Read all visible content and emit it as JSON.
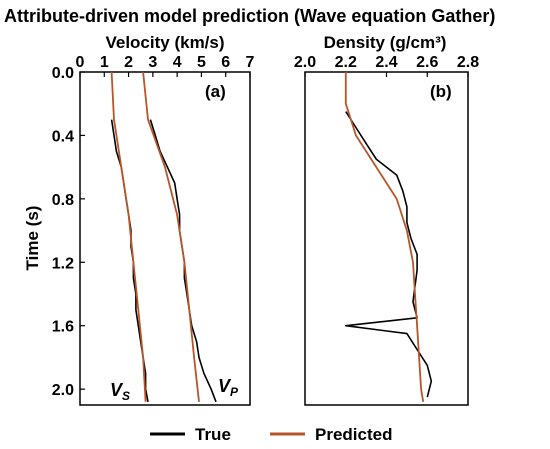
{
  "chart_data": {
    "title": "Attribute-driven model prediction (Wave equation Gather)",
    "ylabel": "Time (s)",
    "ylim": [
      0.0,
      2.1
    ],
    "yticks": [
      "0.0",
      "0.4",
      "0.8",
      "1.2",
      "1.6",
      "2.0"
    ],
    "ytick_values": [
      0.0,
      0.4,
      0.8,
      1.2,
      1.6,
      2.0
    ],
    "legend": {
      "placement": "bottom",
      "entries": [
        {
          "name": "True",
          "color": "#000000"
        },
        {
          "name": "Predicted",
          "color": "#b5552a"
        }
      ]
    },
    "panels": [
      {
        "type": "line",
        "label": "(a)",
        "xlabel": "Velocity (km/s)",
        "xlim": [
          0,
          7
        ],
        "xticks": [
          "0",
          "1",
          "2",
          "3",
          "4",
          "5",
          "6",
          "7"
        ],
        "xtick_values": [
          0,
          1,
          2,
          3,
          4,
          5,
          6,
          7
        ],
        "curve_tags": [
          {
            "main": "V",
            "sub": "S"
          },
          {
            "main": "V",
            "sub": "P"
          }
        ],
        "series": [
          {
            "name": "True",
            "curve": "Vs",
            "time": [
              0.3,
              0.4,
              0.5,
              0.6,
              0.7,
              0.8,
              0.9,
              1.0,
              1.1,
              1.2,
              1.3,
              1.4,
              1.5,
              1.6,
              1.7,
              1.8,
              1.9,
              2.0,
              2.08
            ],
            "x": [
              1.3,
              1.4,
              1.5,
              1.7,
              1.8,
              1.9,
              2.0,
              2.1,
              2.1,
              2.2,
              2.2,
              2.3,
              2.3,
              2.4,
              2.5,
              2.6,
              2.7,
              2.7,
              2.8
            ]
          },
          {
            "name": "Predicted",
            "curve": "Vs",
            "time": [
              0.0,
              0.3,
              0.6,
              0.9,
              1.2,
              1.5,
              1.8,
              2.08
            ],
            "x": [
              1.3,
              1.4,
              1.7,
              2.0,
              2.2,
              2.4,
              2.6,
              2.7
            ]
          },
          {
            "name": "True",
            "curve": "Vp",
            "time": [
              0.3,
              0.4,
              0.5,
              0.6,
              0.7,
              0.8,
              0.9,
              1.0,
              1.1,
              1.2,
              1.3,
              1.4,
              1.5,
              1.6,
              1.7,
              1.8,
              1.9,
              2.0,
              2.08
            ],
            "x": [
              2.9,
              3.1,
              3.3,
              3.6,
              3.9,
              4.0,
              4.1,
              4.1,
              4.2,
              4.3,
              4.3,
              4.4,
              4.5,
              4.6,
              4.8,
              4.9,
              5.1,
              5.4,
              5.6
            ]
          },
          {
            "name": "Predicted",
            "curve": "Vp",
            "time": [
              0.0,
              0.3,
              0.6,
              0.9,
              1.2,
              1.5,
              1.8,
              2.08
            ],
            "x": [
              2.6,
              2.8,
              3.5,
              4.0,
              4.3,
              4.5,
              4.7,
              4.9
            ]
          }
        ]
      },
      {
        "type": "line",
        "label": "(b)",
        "xlabel": "Density (g/cm³)",
        "xlim": [
          2.0,
          2.8
        ],
        "xticks": [
          "2.0",
          "2.2",
          "2.4",
          "2.6",
          "2.8"
        ],
        "xtick_values": [
          2.0,
          2.2,
          2.4,
          2.6,
          2.8
        ],
        "series": [
          {
            "name": "True",
            "time": [
              0.25,
              0.35,
              0.45,
              0.55,
              0.65,
              0.75,
              0.85,
              0.95,
              1.05,
              1.15,
              1.25,
              1.35,
              1.45,
              1.55,
              1.6,
              1.65,
              1.75,
              1.85,
              1.95,
              2.05
            ],
            "x": [
              2.2,
              2.25,
              2.3,
              2.35,
              2.45,
              2.48,
              2.5,
              2.5,
              2.52,
              2.55,
              2.55,
              2.54,
              2.53,
              2.55,
              2.2,
              2.5,
              2.55,
              2.6,
              2.62,
              2.6
            ]
          },
          {
            "name": "Predicted",
            "time": [
              0.0,
              0.2,
              0.4,
              0.6,
              0.8,
              1.0,
              1.2,
              1.4,
              1.6,
              1.8,
              2.0,
              2.08
            ],
            "x": [
              2.2,
              2.2,
              2.25,
              2.35,
              2.45,
              2.5,
              2.53,
              2.54,
              2.55,
              2.56,
              2.57,
              2.58
            ]
          }
        ]
      }
    ]
  }
}
